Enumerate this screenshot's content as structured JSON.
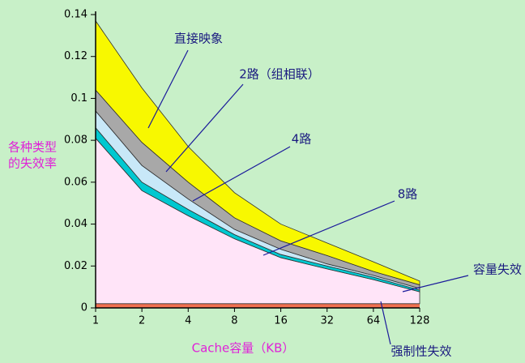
{
  "chart_data": {
    "type": "stacked_area",
    "y_label": [
      "各种类型",
      "的失效率"
    ],
    "x_label": "Cache容量（KB）",
    "categories": [
      "1",
      "2",
      "4",
      "8",
      "16",
      "32",
      "64",
      "128"
    ],
    "series": [
      {
        "name": "强制性失效",
        "color": "#f07050",
        "values": [
          0.002,
          0.002,
          0.002,
          0.002,
          0.002,
          0.002,
          0.002,
          0.002
        ]
      },
      {
        "name": "容量失效",
        "color": "#ffe4f8",
        "values": [
          0.079,
          0.054,
          0.042,
          0.031,
          0.022,
          0.0166,
          0.0115,
          0.0057
        ]
      },
      {
        "name": "8路",
        "color": "#00c8d0",
        "values": [
          0.005,
          0.004,
          0.003,
          0.002,
          0.0015,
          0.0014,
          0.0012,
          0.0008
        ]
      },
      {
        "name": "4路",
        "color": "#c8e8f8",
        "values": [
          0.008,
          0.008,
          0.005,
          0.0025,
          0.0025,
          0.001,
          0.0008,
          0.0008
        ]
      },
      {
        "name": "2路（组相联）",
        "color": "#a8a8a8",
        "values": [
          0.01,
          0.011,
          0.008,
          0.0055,
          0.004,
          0.004,
          0.0019,
          0.0017
        ]
      },
      {
        "name": "直接映象",
        "color": "#f8f800",
        "values": [
          0.033,
          0.026,
          0.017,
          0.012,
          0.008,
          0.006,
          0.0046,
          0.0018
        ]
      }
    ],
    "ylim": [
      0,
      0.14
    ],
    "yticks": [
      0,
      0.02,
      0.04,
      0.06,
      0.08,
      0.1,
      0.12,
      0.14
    ],
    "background": "#c8f0c8"
  }
}
